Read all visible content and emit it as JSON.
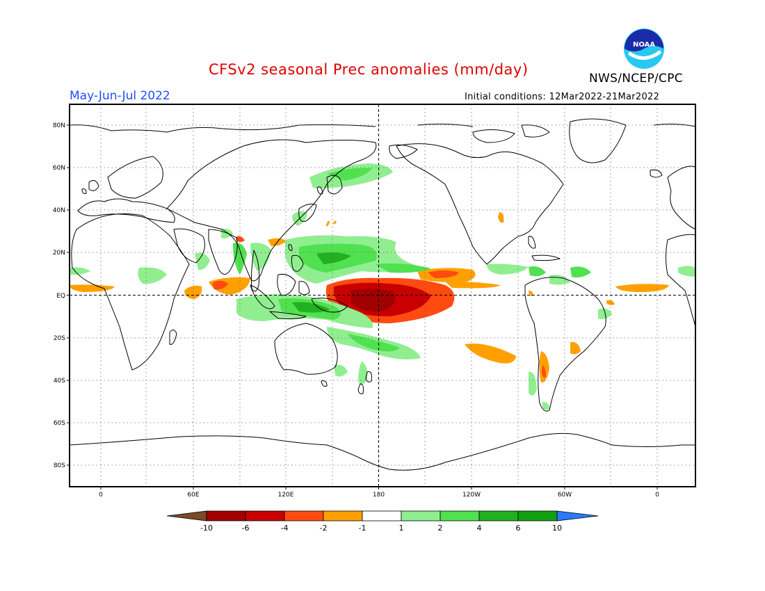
{
  "header": {
    "title": "CFSv2 seasonal Prec anomalies (mm/day)",
    "season": "May-Jun-Jul 2022",
    "initial_conditions": "Initial conditions: 12Mar2022-21Mar2022",
    "organization": "NWS/NCEP/CPC",
    "logo_text": "NOAA"
  },
  "axes": {
    "lat_ticks": [
      "80N",
      "60N",
      "40N",
      "20N",
      "EQ",
      "20S",
      "40S",
      "60S",
      "80S"
    ],
    "lon_ticks": [
      "0",
      "60E",
      "120E",
      "180",
      "120W",
      "60W",
      "0"
    ]
  },
  "legend": {
    "labels": [
      "-10",
      "-6",
      "-4",
      "-2",
      "-1",
      "1",
      "2",
      "4",
      "6",
      "10"
    ],
    "colors": [
      "#7a4a2a",
      "#a00000",
      "#c80000",
      "#ff4a10",
      "#ffa000",
      "#ffffff",
      "#90ee90",
      "#50e050",
      "#20b020",
      "#10a010",
      "#2a7aff"
    ]
  },
  "colors": {
    "wet_light": "#90ee90",
    "wet_mid": "#50e050",
    "wet_dark": "#20b020",
    "dry_orange": "#ffa000",
    "dry_redorange": "#ff4a10",
    "dry_red": "#c80000",
    "dry_dark": "#a00000"
  }
}
